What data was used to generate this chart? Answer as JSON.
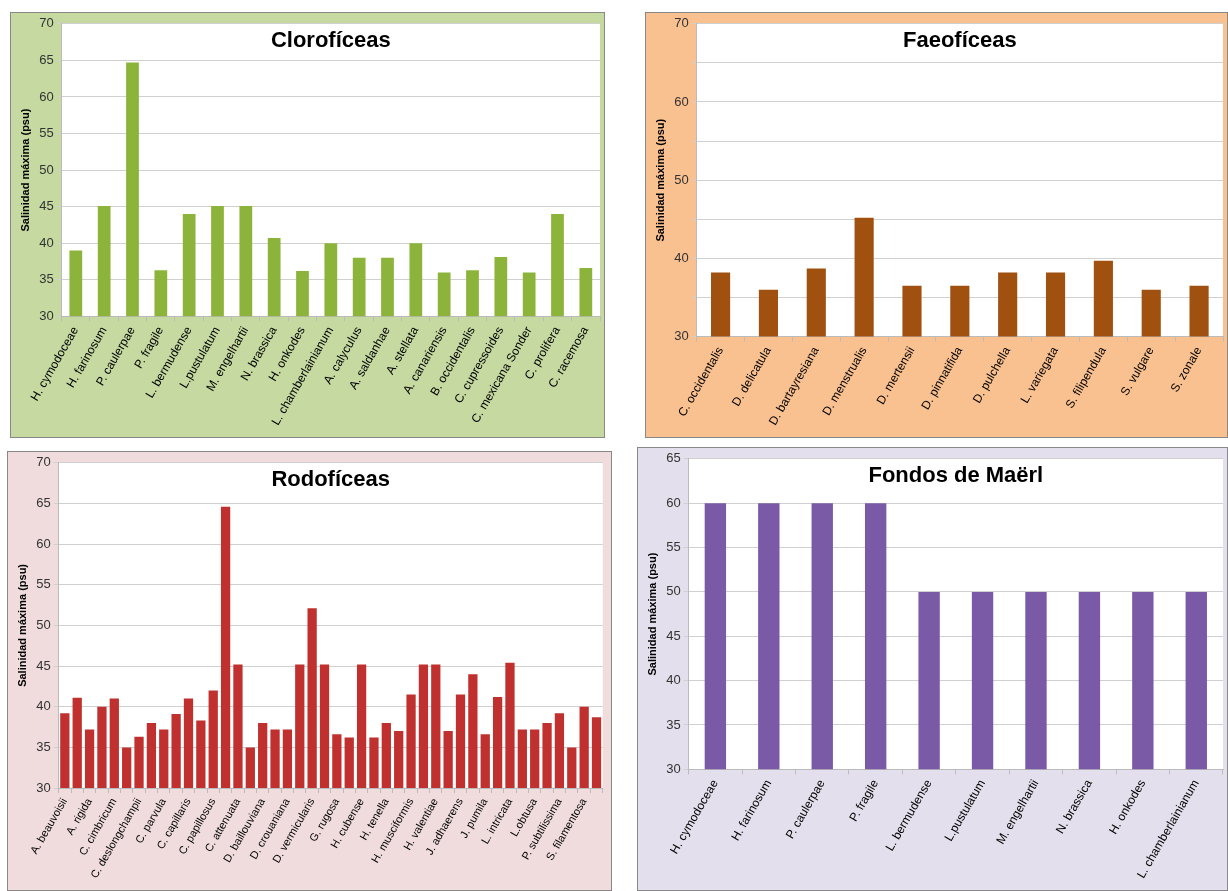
{
  "chart_data": [
    {
      "type": "bar",
      "title": "Clorofíceas",
      "ylabel": "Salinidad máxima (psu)",
      "color": "#8db43a",
      "grid": true,
      "ylim": [
        30,
        70
      ],
      "yticks": [
        30,
        35,
        40,
        45,
        50,
        55,
        60,
        65,
        70
      ],
      "categories": [
        "H. cymodoceae",
        "H. farinosum",
        "P. caulerpae",
        "P. fragile",
        "L. bermudense",
        "L.pustulatum",
        "M. engelhartii",
        "N. brassica",
        "H. onkodes",
        "L. chamberlainianum",
        "A. calyculus",
        "A. saldanhae",
        "A. stellata",
        "A. canariensis",
        "B. occidentalis",
        "C. cupressoides",
        "C. mexicana Sonder",
        "C. prolifera",
        "C. racemosa"
      ],
      "values": [
        39,
        45.1,
        64.7,
        36.3,
        44,
        45.1,
        45.1,
        40.7,
        36.2,
        40,
        38,
        38,
        40,
        36,
        36.3,
        38.1,
        36,
        44,
        36.6
      ]
    },
    {
      "type": "bar",
      "title": "Faeofíceas",
      "ylabel": "Salinidad máxima (psu)",
      "color": "#a0500f",
      "grid": true,
      "ylim": [
        30,
        70
      ],
      "yticks": [
        30,
        {
          "value": 35,
          "label": null
        },
        40,
        {
          "value": 45,
          "label": null
        },
        50,
        {
          "value": 55,
          "label": null
        },
        60,
        {
          "value": 65,
          "label": null
        },
        70
      ],
      "categories": [
        "C. occidentalis",
        "D. delicatula",
        "D. bartayresiana",
        "D. menstrualis",
        "D. mertensii",
        "D. pinnatifida",
        "D. pulchella",
        "L. variegata",
        "S. filipendula",
        "S. vulgare",
        "S. zonale"
      ],
      "values": [
        38.2,
        36,
        38.7,
        45.2,
        36.5,
        36.5,
        38.2,
        38.2,
        39.7,
        36,
        36.5
      ]
    },
    {
      "type": "bar",
      "title": "Rodofíceas",
      "ylabel": "Salinidad máxima (psu)",
      "color": "#c0302e",
      "grid": true,
      "ylim": [
        30,
        70
      ],
      "yticks": [
        30,
        35,
        40,
        45,
        50,
        55,
        60,
        65,
        70
      ],
      "categories": [
        "A. beauvoisii",
        null,
        "A. rigida",
        null,
        "C. cimbricum",
        null,
        "C. deslongchampii",
        null,
        "C. parvula",
        null,
        "C. capillaris",
        null,
        "C. papillosus",
        null,
        "C. attenuata",
        null,
        "D. baillouviana",
        null,
        "D. crouaniana",
        null,
        "D. vermicularis",
        null,
        "G. rugosa",
        null,
        "H. cubense",
        null,
        "H. tenella",
        null,
        "H. musciformis",
        null,
        "H. valentiae",
        null,
        "J. adhaerens",
        null,
        "J. pumila",
        null,
        "L. intricata",
        null,
        "L.obtusa",
        null,
        "P. subtilissima",
        null,
        "S. filamentosa",
        null
      ],
      "values": [
        39.2,
        41.1,
        37.2,
        40,
        41,
        35,
        36.3,
        38,
        37.2,
        39.1,
        41,
        38.3,
        42,
        64.6,
        45.2,
        35,
        38,
        37.2,
        37.2,
        45.2,
        52.1,
        45.2,
        36.6,
        36.2,
        45.2,
        36.2,
        38,
        37,
        41.5,
        45.2,
        45.2,
        37,
        41.5,
        44,
        36.6,
        41.2,
        45.4,
        37.2,
        37.2,
        38,
        39.2,
        35,
        40,
        38.7
      ]
    },
    {
      "type": "bar",
      "title": "Fondos de Maërl",
      "ylabel": "Salinidad máxima (psu)",
      "color": "#7a5aa6",
      "grid": true,
      "ylim": [
        30,
        65
      ],
      "yticks": [
        30,
        35,
        40,
        45,
        50,
        55,
        60,
        65
      ],
      "categories": [
        "H. cymodoceae",
        "H. farinosum",
        "P. caulerpae",
        "P. fragile",
        "L. bermudense",
        "L.pustulatum",
        "M. engelhartii",
        "N. brassica",
        "H. onkodes",
        "L. chamberlainianum"
      ],
      "values": [
        60,
        60,
        60,
        60,
        50,
        50,
        50,
        50,
        50,
        50
      ]
    }
  ]
}
